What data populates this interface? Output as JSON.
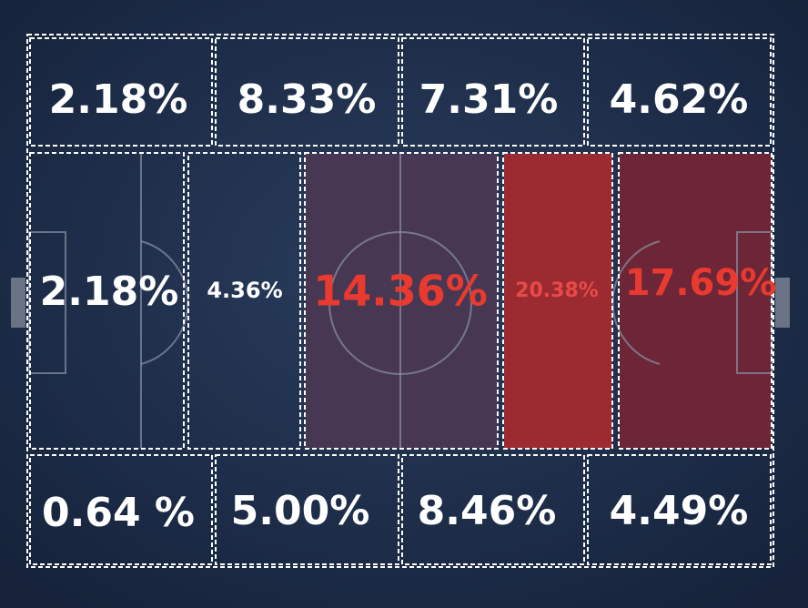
{
  "top_row": [
    "2.18%",
    "8.33%",
    "7.31%",
    "4.62%"
  ],
  "middle_row": [
    "2.18%",
    "4.36%",
    "14.36%",
    "20.38%",
    "17.69%"
  ],
  "bottom_row": [
    "0.64 %",
    "5.00%",
    "8.46%",
    "4.49%"
  ]
}
